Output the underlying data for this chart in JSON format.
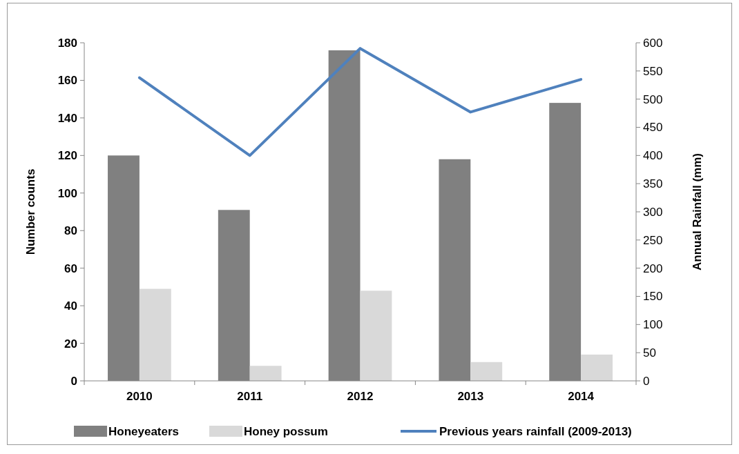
{
  "chart_data": {
    "type": "bar",
    "categories": [
      "2010",
      "2011",
      "2012",
      "2013",
      "2014"
    ],
    "series": [
      {
        "name": "Honeyeaters",
        "color": "#808080",
        "values": [
          120,
          91,
          176,
          118,
          148
        ]
      },
      {
        "name": "Honey possum",
        "color": "#d9d9d9",
        "values": [
          49,
          8,
          48,
          10,
          14
        ]
      },
      {
        "name": "Previous years rainfall (2009-2013)",
        "type": "line",
        "axis": "y2",
        "color": "#4f81bd",
        "values": [
          538,
          400,
          590,
          477,
          535
        ]
      }
    ],
    "ylabel": "Number counts",
    "y2label": "Annual Rainfall (mm)",
    "ylim": [
      0,
      180
    ],
    "yticks": [
      0,
      20,
      40,
      60,
      80,
      100,
      120,
      140,
      160,
      180
    ],
    "y2lim": [
      0,
      600
    ],
    "y2ticks": [
      0,
      50,
      100,
      150,
      200,
      250,
      300,
      350,
      400,
      450,
      500,
      550,
      600
    ],
    "legend": "bottom",
    "grid": false,
    "marker": "none",
    "line_style": "solid"
  }
}
